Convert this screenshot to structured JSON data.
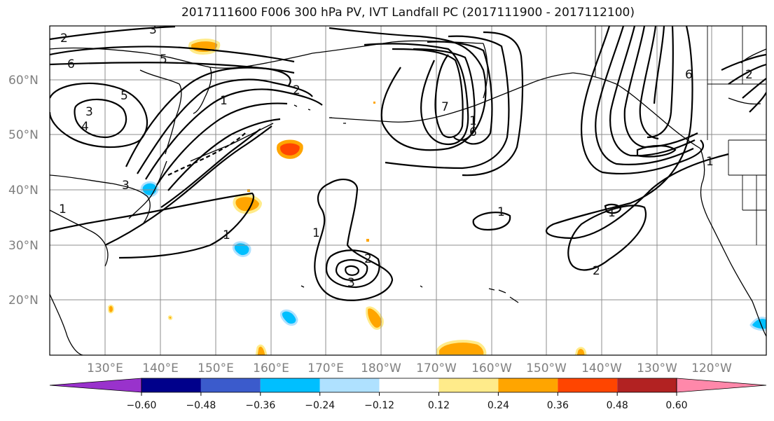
{
  "title": "2017111600 F006 300 hPa PV, IVT Landfall PC (2017111900 - 2017112100)",
  "lat_ticks": [
    "20°N",
    "30°N",
    "40°N",
    "50°N",
    "60°N"
  ],
  "lon_ticks": [
    "130°E",
    "140°E",
    "150°E",
    "160°E",
    "170°E",
    "180°W",
    "170°W",
    "160°W",
    "150°W",
    "140°W",
    "130°W",
    "120°W"
  ],
  "colorbar": {
    "colors": [
      "#9932cc",
      "#00008b",
      "#3b5bcc",
      "#00bfff",
      "#afe1ff",
      "#ffffff",
      "#ffeb8a",
      "#ffa500",
      "#ff4500",
      "#b22222",
      "#ff88aa"
    ],
    "labels": [
      "−0.60",
      "−0.48",
      "−0.36",
      "−0.24",
      "−0.12",
      "0.12",
      "0.24",
      "0.36",
      "0.48",
      "0.60"
    ]
  },
  "contour_labels": [
    "2",
    "3",
    "6",
    "5",
    "3",
    "4",
    "3",
    "1",
    "5",
    "2",
    "1",
    "1",
    "1",
    "3",
    "2",
    "6",
    "1",
    "7",
    "2",
    "6",
    "1",
    "2",
    "1",
    "1"
  ],
  "colors": {
    "contour": "#000000",
    "coast": "#000000",
    "grid": "#8c8c8c"
  }
}
